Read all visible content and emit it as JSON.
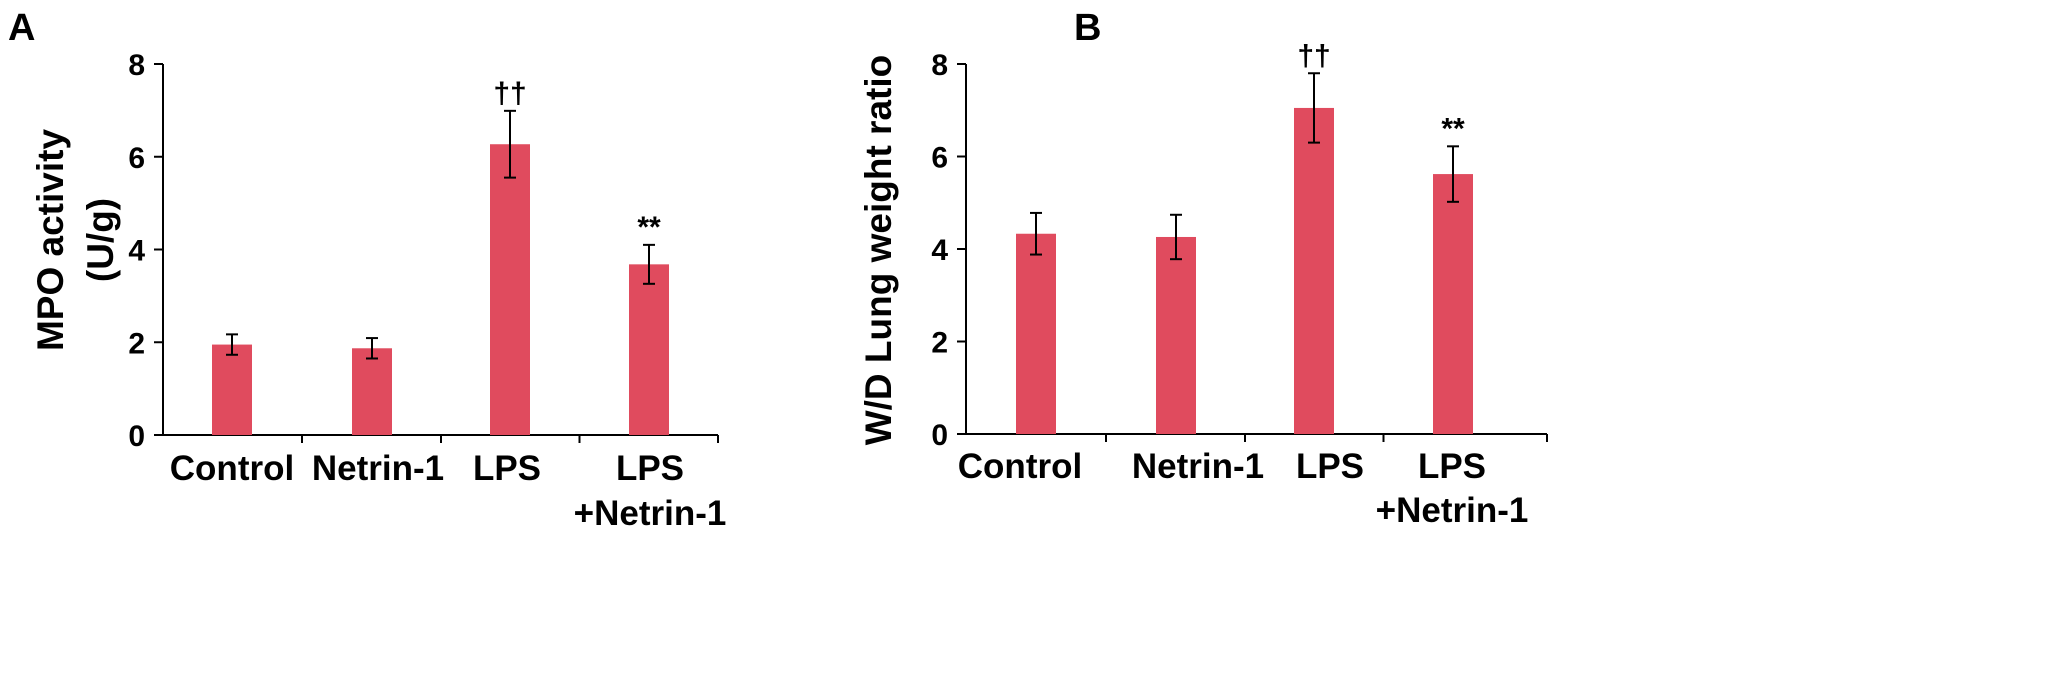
{
  "panels": [
    "A",
    "B"
  ],
  "colors": {
    "bar": "#e04b5e",
    "axis": "#000000"
  },
  "chart_data": [
    {
      "type": "bar",
      "panel": "A",
      "categories": [
        "Control",
        "Netrin-1",
        "LPS",
        "LPS +Netrin-1"
      ],
      "category_lines": [
        [
          "Control"
        ],
        [
          "Netrin-1"
        ],
        [
          "LPS"
        ],
        [
          "LPS",
          "+Netrin-1"
        ]
      ],
      "values": [
        1.95,
        1.87,
        6.27,
        3.68
      ],
      "errors": [
        0.22,
        0.22,
        0.72,
        0.42
      ],
      "annotations": [
        "",
        "",
        "††",
        "**"
      ],
      "ylabel": "MPO activity",
      "ylabel2": "(U/g)",
      "ylim": [
        0,
        8
      ],
      "yticks": [
        0,
        2,
        4,
        6,
        8
      ]
    },
    {
      "type": "bar",
      "panel": "B",
      "categories": [
        "Control",
        "Netrin-1",
        "LPS",
        "LPS +Netrin-1"
      ],
      "category_lines": [
        [
          "Control"
        ],
        [
          "Netrin-1"
        ],
        [
          "LPS"
        ],
        [
          "LPS",
          "+Netrin-1"
        ]
      ],
      "values": [
        4.33,
        4.26,
        7.05,
        5.62
      ],
      "errors": [
        0.45,
        0.48,
        0.75,
        0.6
      ],
      "annotations": [
        "",
        "",
        "††",
        "**"
      ],
      "ylabel": "W/D Lung weight ratio",
      "ylabel2": "",
      "ylim": [
        0,
        8
      ],
      "yticks": [
        0,
        2,
        4,
        6,
        8
      ]
    }
  ]
}
